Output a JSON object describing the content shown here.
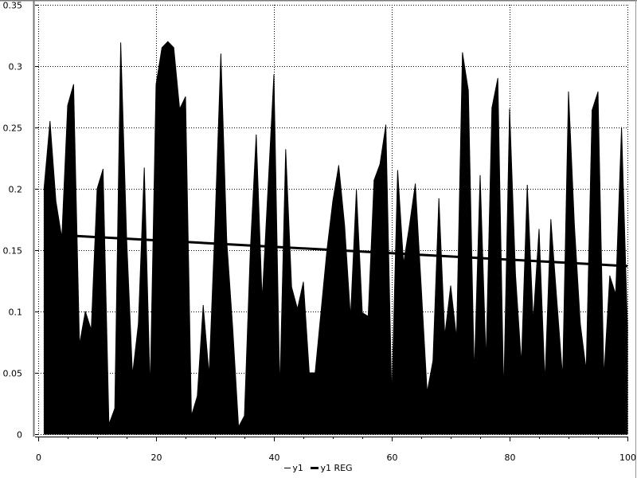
{
  "chart_data": {
    "type": "area",
    "title": "",
    "xlabel": "",
    "ylabel": "",
    "xlim": [
      0,
      100
    ],
    "ylim": [
      0,
      0.35
    ],
    "grid": true,
    "legend_position": "bottom",
    "x_ticks": [
      "0",
      "20",
      "40",
      "60",
      "80",
      "100"
    ],
    "y_ticks": [
      "0",
      "0.05",
      "0.1",
      "0.15",
      "0.2",
      "0.25",
      "0.3",
      "0.35"
    ],
    "series": [
      {
        "name": "y1",
        "style": "filled-area",
        "color": "#000000",
        "x": [
          1,
          2,
          3,
          4,
          5,
          6,
          7,
          8,
          9,
          10,
          11,
          12,
          13,
          14,
          15,
          16,
          17,
          18,
          19,
          20,
          21,
          22,
          23,
          24,
          25,
          26,
          27,
          28,
          29,
          30,
          31,
          32,
          33,
          34,
          35,
          36,
          37,
          38,
          39,
          40,
          41,
          42,
          43,
          44,
          45,
          46,
          47,
          48,
          49,
          50,
          51,
          52,
          53,
          54,
          55,
          56,
          57,
          58,
          59,
          60,
          61,
          62,
          63,
          64,
          65,
          66,
          67,
          68,
          69,
          70,
          71,
          72,
          73,
          74,
          75,
          76,
          77,
          78,
          79,
          80,
          81,
          82,
          83,
          84,
          85,
          86,
          87,
          88,
          89,
          90,
          91,
          92,
          93,
          94,
          95,
          96,
          97,
          98,
          99,
          100
        ],
        "y": [
          0.201,
          0.255,
          0.19,
          0.16,
          0.268,
          0.285,
          0.073,
          0.1,
          0.085,
          0.2,
          0.216,
          0.008,
          0.021,
          0.319,
          0.16,
          0.048,
          0.09,
          0.217,
          0.035,
          0.285,
          0.315,
          0.32,
          0.315,
          0.265,
          0.275,
          0.015,
          0.031,
          0.105,
          0.048,
          0.17,
          0.31,
          0.157,
          0.087,
          0.006,
          0.015,
          0.15,
          0.244,
          0.109,
          0.2,
          0.293,
          0.034,
          0.232,
          0.12,
          0.102,
          0.124,
          0.05,
          0.05,
          0.1,
          0.15,
          0.19,
          0.219,
          0.17,
          0.095,
          0.199,
          0.099,
          0.096,
          0.207,
          0.22,
          0.252,
          0.029,
          0.215,
          0.139,
          0.17,
          0.204,
          0.12,
          0.034,
          0.06,
          0.192,
          0.08,
          0.121,
          0.078,
          0.311,
          0.28,
          0.048,
          0.211,
          0.059,
          0.266,
          0.29,
          0.031,
          0.265,
          0.13,
          0.057,
          0.203,
          0.092,
          0.167,
          0.042,
          0.175,
          0.11,
          0.046,
          0.279,
          0.17,
          0.09,
          0.052,
          0.264,
          0.279,
          0.046,
          0.129,
          0.114,
          0.25,
          0.088
        ]
      },
      {
        "name": "y1 REG",
        "style": "thick-line",
        "color": "#000000",
        "x": [
          1,
          100
        ],
        "y": [
          0.163,
          0.137
        ]
      }
    ]
  },
  "legend": {
    "items": [
      "y1",
      "y1 REG"
    ]
  }
}
